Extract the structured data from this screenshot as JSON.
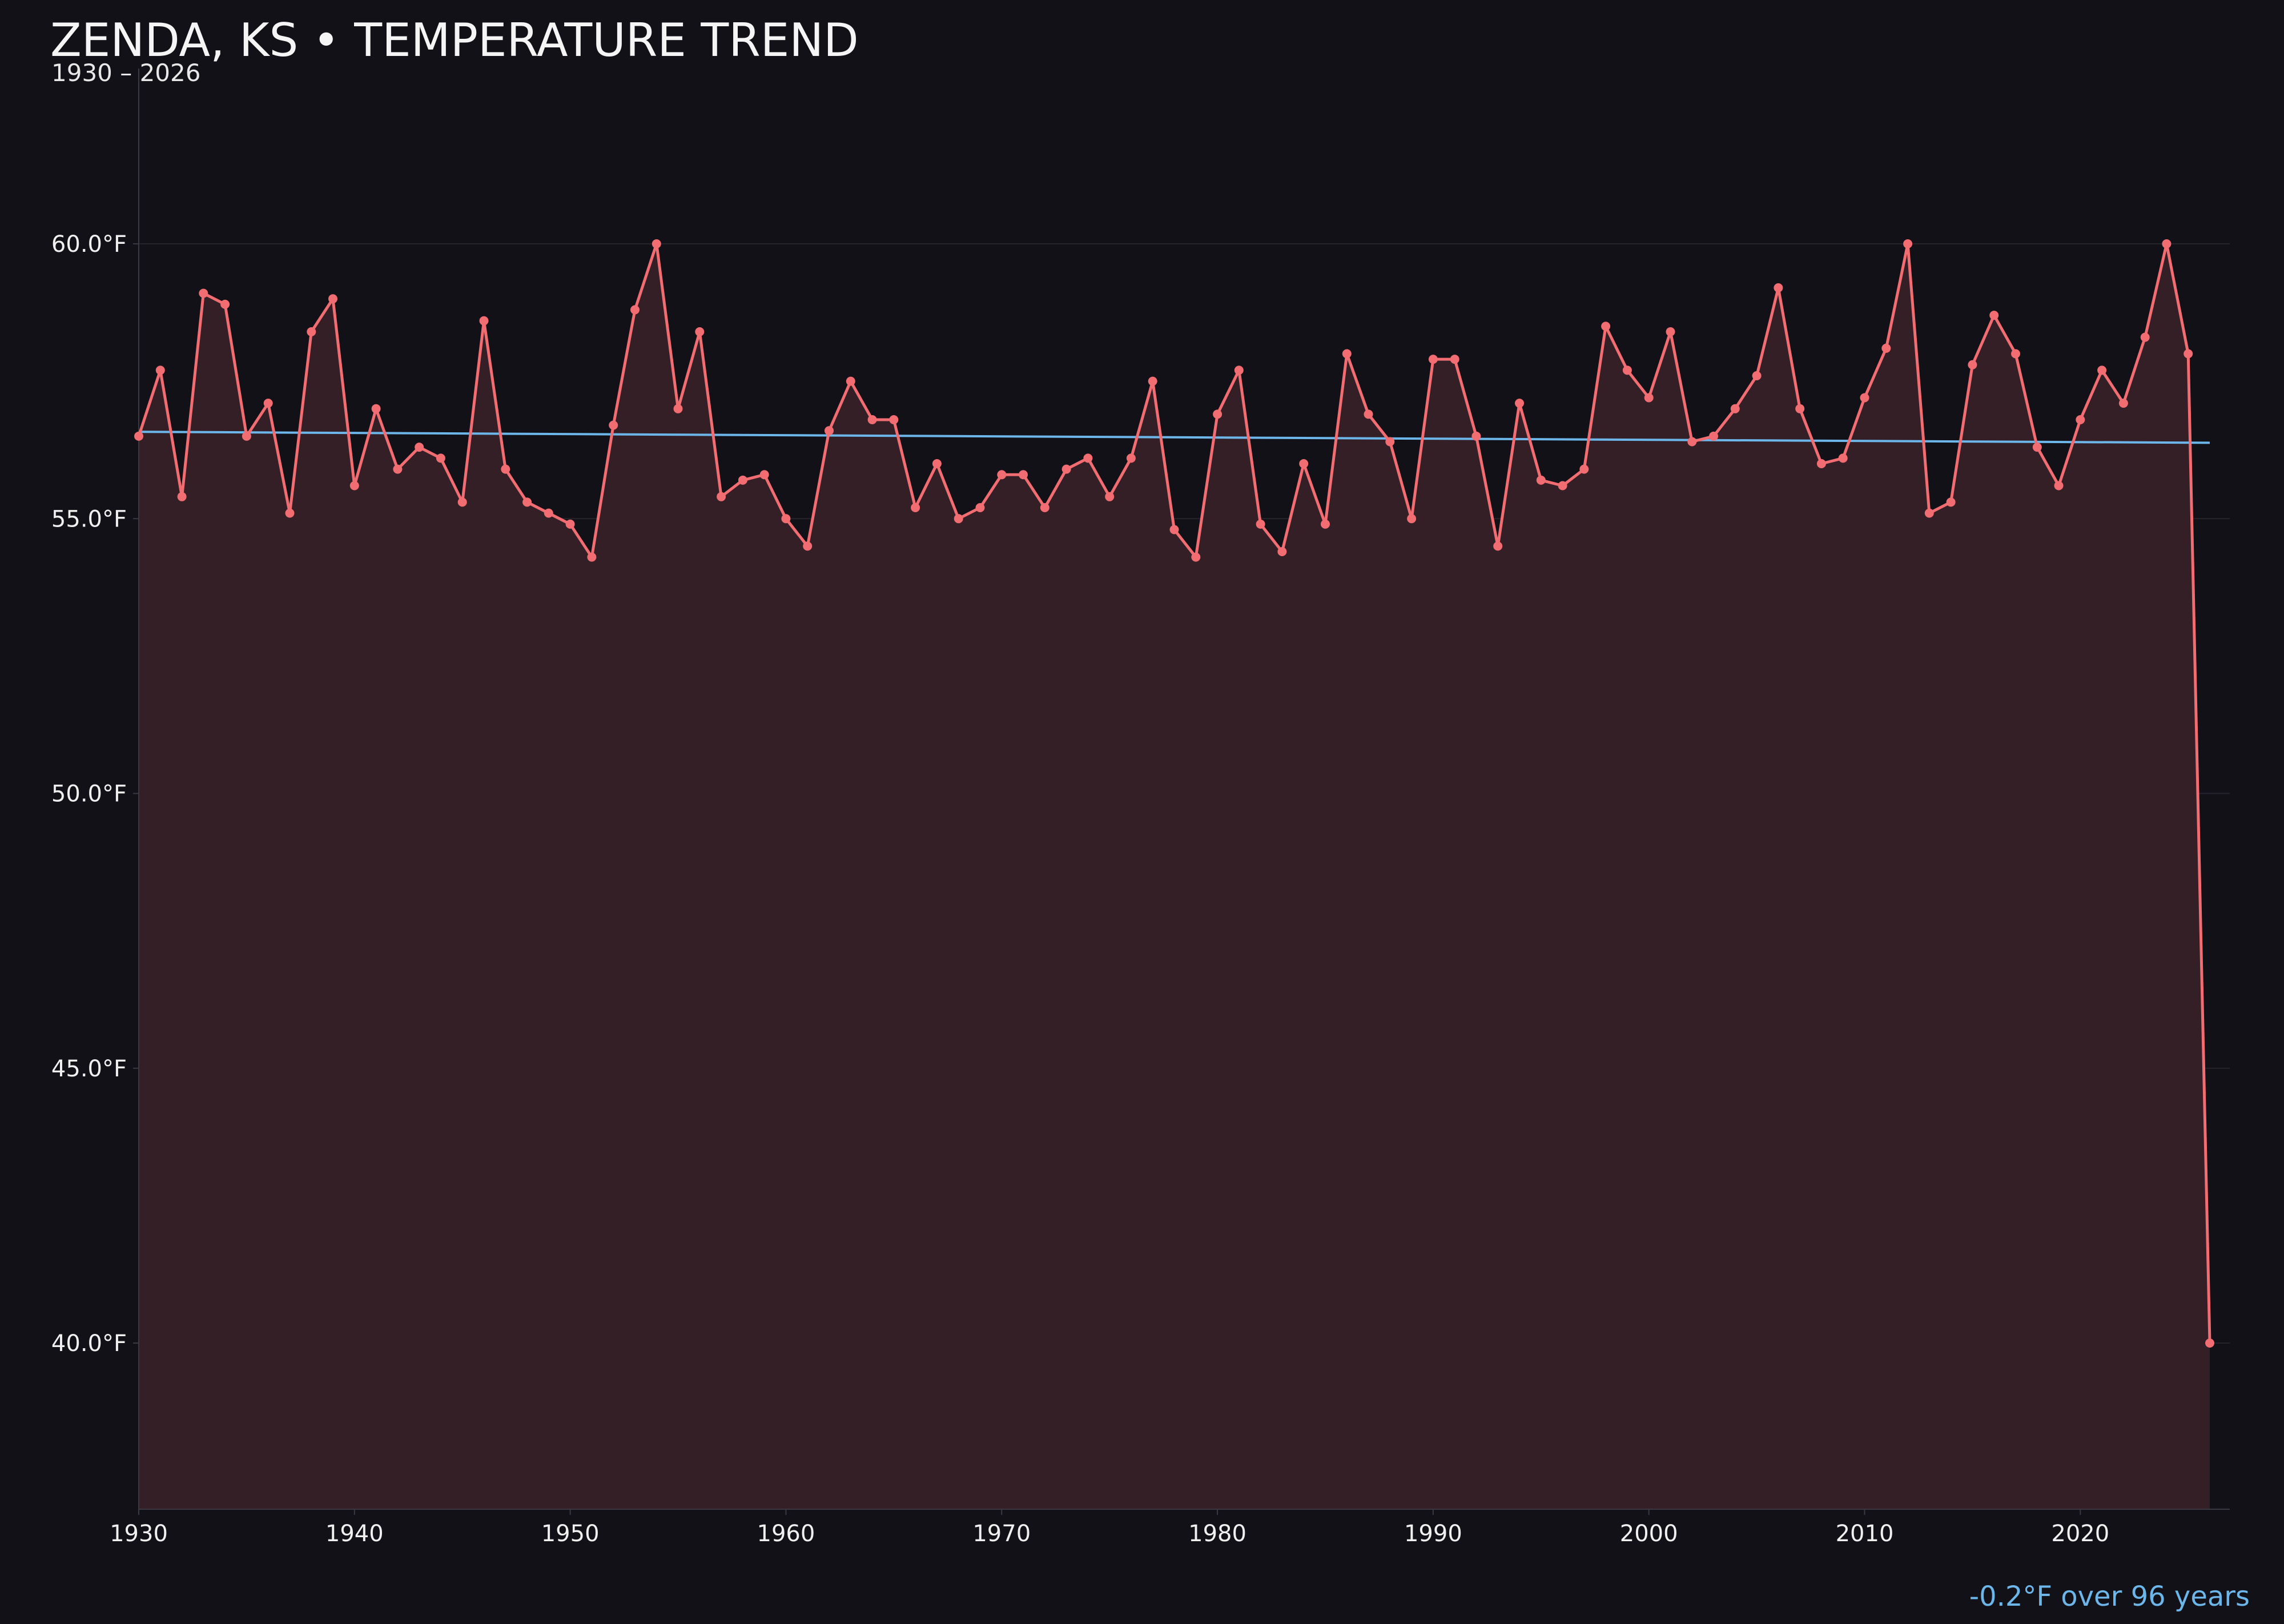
{
  "chart_data": {
    "type": "line",
    "title": "ZENDA, KS • TEMPERATURE TREND",
    "subtitle": "1930 – 2026",
    "annotation": "-0.2°F over 96 years",
    "xlim": [
      1930,
      2027
    ],
    "ylim": [
      37,
      63
    ],
    "x_ticks": [
      1930,
      1940,
      1950,
      1960,
      1970,
      1980,
      1990,
      2000,
      2010,
      2020
    ],
    "x_tick_labels": [
      "1930",
      "1940",
      "1950",
      "1960",
      "1970",
      "1980",
      "1990",
      "2000",
      "2010",
      "2020"
    ],
    "y_ticks": [
      40,
      45,
      50,
      55,
      60
    ],
    "y_tick_labels": [
      "40.0°F",
      "45.0°F",
      "50.0°F",
      "55.0°F",
      "60.0°F"
    ],
    "grid": true,
    "colors": {
      "background": "#121118",
      "series": "#f26d72",
      "area": "#341f26",
      "trend": "#6cb6ea",
      "grid": "#26232b",
      "axis": "#3a3840"
    },
    "series": [
      {
        "x": [
          1930,
          1931,
          1932,
          1933,
          1934,
          1935,
          1936,
          1937,
          1938,
          1939,
          1940,
          1941,
          1942,
          1943,
          1944,
          1945,
          1946,
          1947,
          1948,
          1949,
          1950,
          1951,
          1952,
          1953,
          1954,
          1955,
          1956,
          1957,
          1958,
          1959,
          1960,
          1961,
          1962,
          1963,
          1964,
          1965,
          1966,
          1967,
          1968,
          1969,
          1970,
          1971,
          1972,
          1973,
          1974,
          1975,
          1976,
          1977,
          1978,
          1979,
          1980,
          1981,
          1982,
          1983,
          1984,
          1985,
          1986,
          1987,
          1988,
          1989,
          1990,
          1991,
          1992,
          1993,
          1994,
          1995,
          1996,
          1997,
          1998,
          1999,
          2000,
          2001,
          2002,
          2003,
          2004,
          2005,
          2006,
          2007,
          2008,
          2009,
          2010,
          2011,
          2012,
          2013,
          2014,
          2015,
          2016,
          2017,
          2018,
          2019,
          2020,
          2021,
          2022,
          2023,
          2024,
          2025,
          2026
        ],
        "y": [
          56.5,
          57.7,
          55.4,
          59.1,
          58.9,
          56.5,
          57.1,
          55.1,
          58.4,
          59.0,
          55.6,
          57.0,
          55.9,
          56.3,
          56.1,
          55.3,
          58.6,
          55.9,
          55.3,
          55.1,
          54.9,
          54.3,
          56.7,
          58.8,
          60.0,
          57.0,
          58.4,
          55.4,
          55.7,
          55.8,
          55.0,
          54.5,
          56.6,
          57.5,
          56.8,
          56.8,
          55.2,
          56.0,
          55.0,
          55.2,
          55.8,
          55.8,
          55.2,
          55.9,
          56.1,
          55.4,
          56.1,
          57.5,
          54.8,
          54.3,
          56.9,
          57.7,
          54.9,
          54.4,
          56.0,
          54.9,
          58.0,
          56.9,
          56.4,
          55.0,
          57.9,
          57.9,
          56.5,
          54.5,
          57.1,
          55.7,
          55.6,
          55.9,
          58.5,
          57.7,
          57.2,
          58.4,
          56.4,
          56.5,
          57.0,
          57.6,
          59.2,
          57.0,
          56.0,
          56.1,
          57.2,
          58.1,
          60.0,
          55.1,
          55.3,
          57.8,
          58.7,
          58.0,
          56.3,
          55.6,
          56.8,
          57.7,
          57.1,
          58.3,
          60.0,
          58.0,
          40.0
        ]
      },
      {
        "trend_x": [
          1930,
          2026
        ],
        "trend_y": [
          56.58,
          56.38
        ]
      }
    ]
  }
}
